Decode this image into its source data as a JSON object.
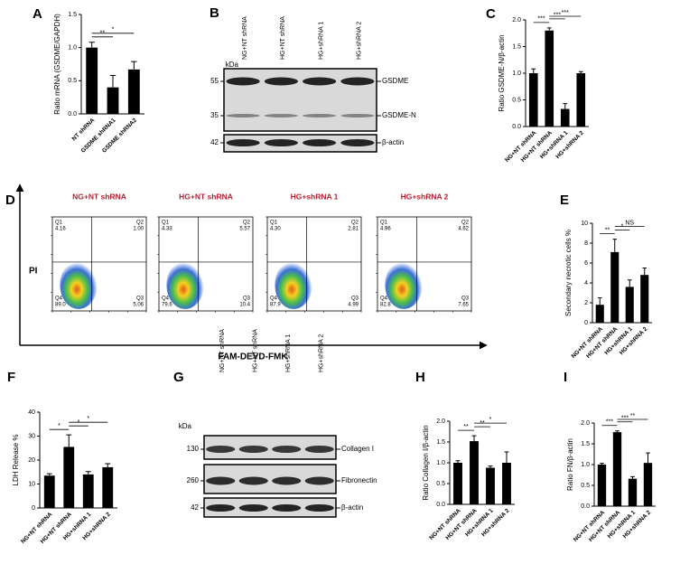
{
  "chart_data": [
    {
      "label": "A",
      "type": "bar",
      "ylabel": "Ratio mRNA (GSDME/GAPDH)",
      "categories": [
        "NT shRNA",
        "GSDME shRNA1",
        "GSDME shRNA2"
      ],
      "values": [
        1.0,
        0.4,
        0.67
      ],
      "errors": [
        0.08,
        0.18,
        0.12
      ],
      "color": "#000000",
      "ylim": [
        0,
        1.5
      ],
      "yticks": [
        {
          "value": 0,
          "label": "0.0"
        },
        {
          "value": 0.5,
          "label": "0.5"
        },
        {
          "value": 1,
          "label": "1.0"
        },
        {
          "value": 1.5,
          "label": "1.5"
        }
      ],
      "annotations": [
        {
          "text": "**",
          "from": 0,
          "to": 1
        },
        {
          "text": "*",
          "from": 0,
          "to": 2
        }
      ]
    },
    {
      "label": "C",
      "type": "bar",
      "ylabel": "Ratio GSDME-N/β-actin",
      "categories": [
        "NG+NT shRNA",
        "HG+NT shRNA",
        "HG+shRNA 1",
        "HG+shRNA 2"
      ],
      "values": [
        1.0,
        1.8,
        0.33,
        1.0
      ],
      "errors": [
        0.08,
        0.05,
        0.1,
        0.03
      ],
      "color": "#000000",
      "ylim": [
        0,
        2
      ],
      "yticks": [
        {
          "value": 0,
          "label": "0.0"
        },
        {
          "value": 0.5,
          "label": "0.5"
        },
        {
          "value": 1,
          "label": "1.0"
        },
        {
          "value": 1.5,
          "label": "1.5"
        },
        {
          "value": 2,
          "label": "2.0"
        }
      ],
      "annotations": [
        {
          "text": "***",
          "from": 0,
          "to": 1
        },
        {
          "text": "***",
          "from": 1,
          "to": 2
        },
        {
          "text": "***",
          "from": 1,
          "to": 3
        }
      ]
    },
    {
      "label": "E",
      "type": "bar",
      "ylabel": "Secondary necrotic cells %",
      "categories": [
        "NG+NT shRNA",
        "HG+NT shRNA",
        "HG+shRNA 1",
        "HG+shRNA 2"
      ],
      "values": [
        1.8,
        7.1,
        3.6,
        4.8
      ],
      "errors": [
        0.7,
        1.3,
        0.7,
        0.7
      ],
      "color": "#000000",
      "ylim": [
        0,
        10
      ],
      "yticks": [
        0,
        2,
        4,
        6,
        8,
        10
      ],
      "annotations": [
        {
          "text": "**",
          "from": 0,
          "to": 1
        },
        {
          "text": "*",
          "from": 1,
          "to": 2
        },
        {
          "text": "NS",
          "from": 1,
          "to": 3
        }
      ]
    },
    {
      "label": "F",
      "type": "bar",
      "ylabel": "LDH Release %",
      "categories": [
        "NG+NT shRNA",
        "HG+NT shRNA",
        "HG+shRNA 1",
        "HG+shRNA 2"
      ],
      "values": [
        13.5,
        25.5,
        14,
        17
      ],
      "errors": [
        0.8,
        5,
        1.2,
        1.5
      ],
      "color": "#000000",
      "ylim": [
        0,
        40
      ],
      "yticks": [
        0,
        10,
        20,
        30,
        40
      ],
      "annotations": [
        {
          "text": "*",
          "from": 0,
          "to": 1
        },
        {
          "text": "*",
          "from": 1,
          "to": 2
        },
        {
          "text": "*",
          "from": 1,
          "to": 3
        }
      ]
    },
    {
      "label": "H",
      "type": "bar",
      "ylabel": "Ratio Collagen I/β-actin",
      "categories": [
        "NG+NT shRNA",
        "HG+NT shRNA",
        "HG+shRNA 1",
        "HG+shRNA 2"
      ],
      "values": [
        1.0,
        1.52,
        0.88,
        1.0
      ],
      "errors": [
        0.05,
        0.13,
        0.04,
        0.26
      ],
      "color": "#000000",
      "ylim": [
        0,
        2
      ],
      "yticks": [
        {
          "value": 0,
          "label": "0.0"
        },
        {
          "value": 0.5,
          "label": "0.5"
        },
        {
          "value": 1,
          "label": "1.0"
        },
        {
          "value": 1.5,
          "label": "1.5"
        },
        {
          "value": 2,
          "label": "2.0"
        }
      ],
      "annotations": [
        {
          "text": "**",
          "from": 0,
          "to": 1
        },
        {
          "text": "**",
          "from": 1,
          "to": 2
        },
        {
          "text": "*",
          "from": 1,
          "to": 3
        }
      ]
    },
    {
      "label": "I",
      "type": "bar",
      "ylabel": "Ratio FN/β-actin",
      "categories": [
        "NG+NT shRNA",
        "HG+NT shRNA",
        "HG+shRNA 1",
        "HG+shRNA 2"
      ],
      "values": [
        1.0,
        1.78,
        0.66,
        1.04
      ],
      "errors": [
        0.03,
        0.03,
        0.05,
        0.24
      ],
      "color": "#000000",
      "ylim": [
        0,
        2
      ],
      "yticks": [
        {
          "value": 0,
          "label": "0.0"
        },
        {
          "value": 0.5,
          "label": "0.5"
        },
        {
          "value": 1,
          "label": "1.0"
        },
        {
          "value": 1.5,
          "label": "1.5"
        },
        {
          "value": 2,
          "label": "2.0"
        }
      ],
      "annotations": [
        {
          "text": "***",
          "from": 0,
          "to": 1
        },
        {
          "text": "***",
          "from": 1,
          "to": 2
        },
        {
          "text": "**",
          "from": 1,
          "to": 3
        }
      ]
    }
  ],
  "blots": [
    {
      "label": "B",
      "lanes": [
        "NG+NT shRNA",
        "HG+NT shRNA",
        "HG+shRNA 1",
        "HG+shRNA 2"
      ],
      "kda": "kDa",
      "rows": [
        {
          "marker": "55",
          "band": "GSDME"
        },
        {
          "marker": "35",
          "band": "GSDME-N"
        },
        {
          "marker": "42",
          "band": "β-actin"
        }
      ]
    },
    {
      "label": "G",
      "lanes": [
        "NG+NT shRNA",
        "HG+NT shRNA",
        "HG+shRNA 1",
        "HG+shRNA 2"
      ],
      "kda": "kDa",
      "rows": [
        {
          "marker": "130",
          "band": "Collagen I"
        },
        {
          "marker": "260",
          "band": "Fibronectin"
        },
        {
          "marker": "42",
          "band": "β-actin"
        }
      ]
    }
  ],
  "flow": {
    "label": "D",
    "ylabel": "PI",
    "xlabel": "FAM-DEVD-FMK",
    "plots": [
      {
        "title": "NG+NT shRNA",
        "quadrants": [
          {
            "name": "Q1",
            "value": "4.16"
          },
          {
            "name": "Q2",
            "value": "1.00"
          },
          {
            "name": "Q4",
            "value": "89.0"
          },
          {
            "name": "Q3",
            "value": "5.06"
          }
        ]
      },
      {
        "title": "HG+NT shRNA",
        "quadrants": [
          {
            "name": "Q1",
            "value": "4.33"
          },
          {
            "name": "Q2",
            "value": "5.57"
          },
          {
            "name": "Q4",
            "value": "79.6"
          },
          {
            "name": "Q3",
            "value": "10.4"
          }
        ]
      },
      {
        "title": "HG+shRNA 1",
        "quadrants": [
          {
            "name": "Q1",
            "value": "4.30"
          },
          {
            "name": "Q2",
            "value": "2.81"
          },
          {
            "name": "Q4",
            "value": "87.9"
          },
          {
            "name": "Q3",
            "value": "4.99"
          }
        ]
      },
      {
        "title": "HG+shRNA 2",
        "quadrants": [
          {
            "name": "Q1",
            "value": "4.96"
          },
          {
            "name": "Q2",
            "value": "4.62"
          },
          {
            "name": "Q4",
            "value": "82.8"
          },
          {
            "name": "Q3",
            "value": "7.65"
          }
        ]
      }
    ]
  }
}
